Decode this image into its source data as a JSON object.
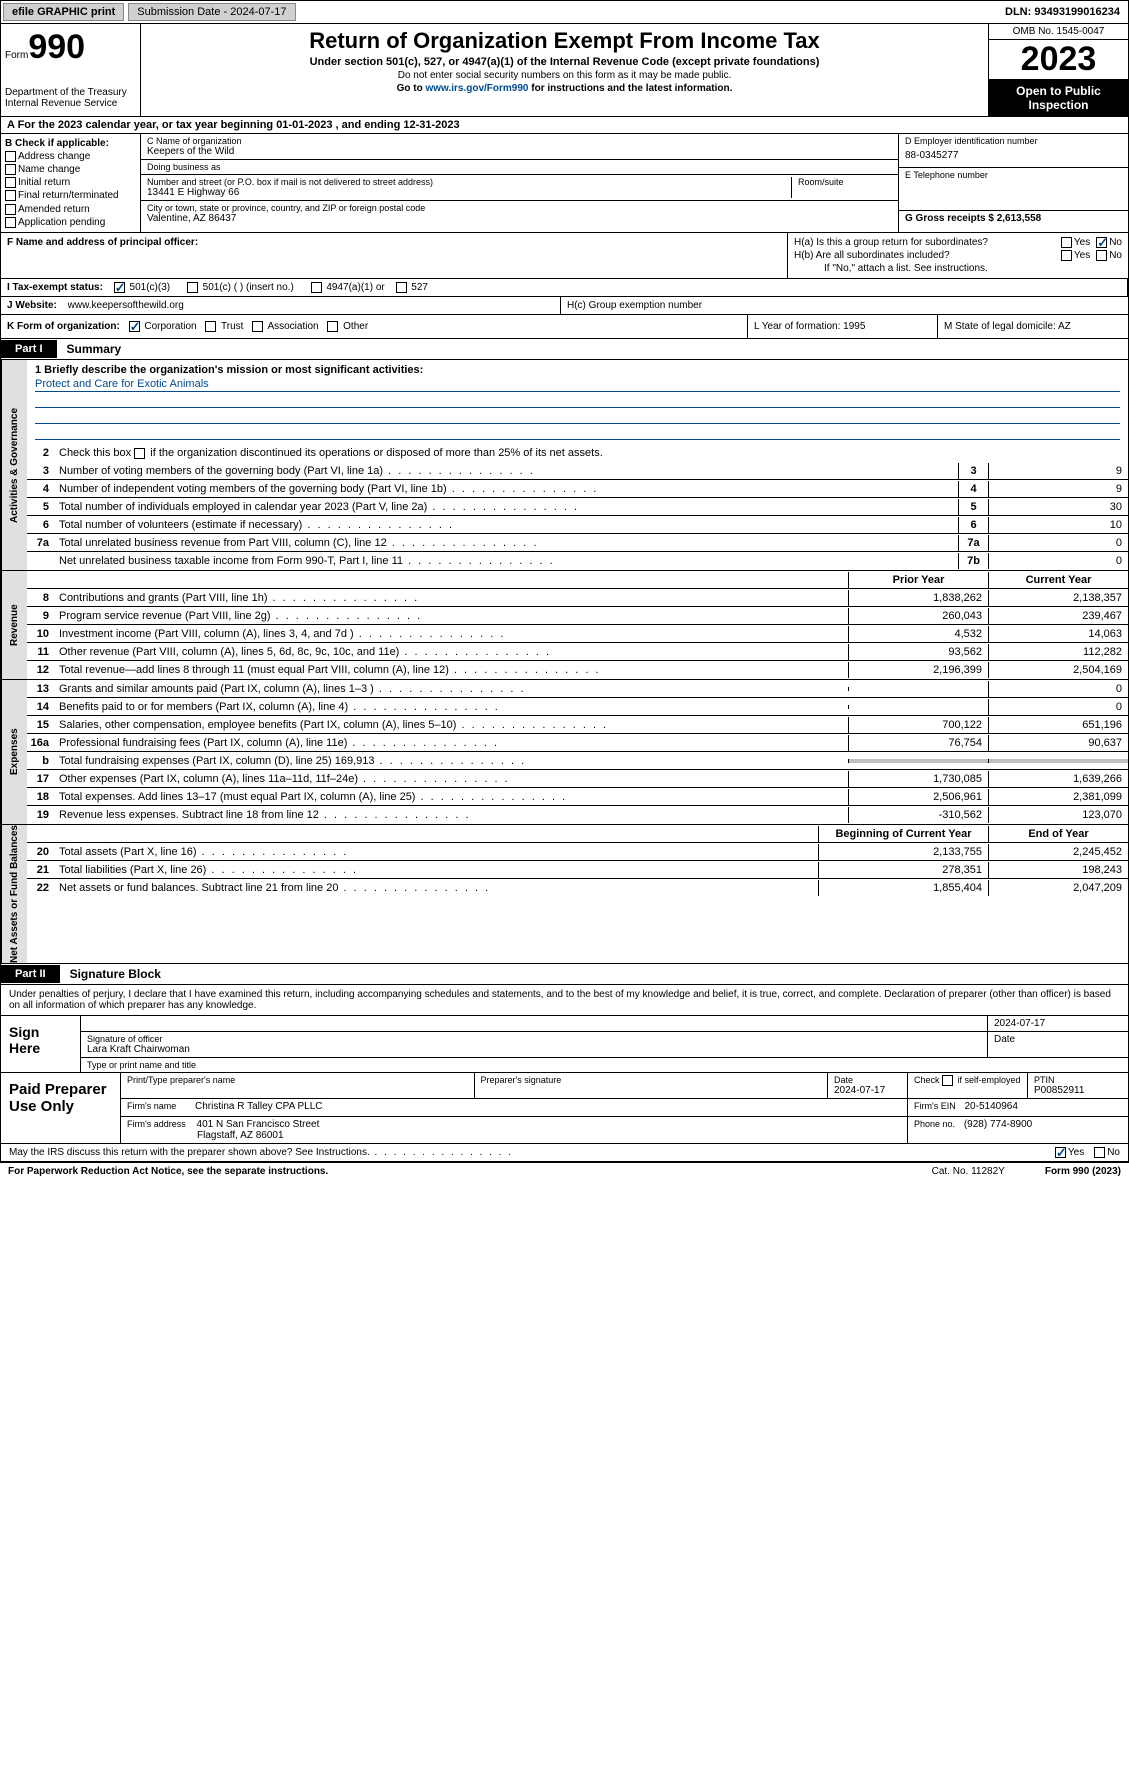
{
  "topbar": {
    "efile": "efile GRAPHIC print",
    "submission": "Submission Date - 2024-07-17",
    "dln": "DLN: 93493199016234"
  },
  "header": {
    "form_prefix": "Form",
    "form_number": "990",
    "dept": "Department of the Treasury",
    "irs": "Internal Revenue Service",
    "title": "Return of Organization Exempt From Income Tax",
    "sub1": "Under section 501(c), 527, or 4947(a)(1) of the Internal Revenue Code (except private foundations)",
    "sub2": "Do not enter social security numbers on this form as it may be made public.",
    "sub3_pre": "Go to ",
    "sub3_link": "www.irs.gov/Form990",
    "sub3_post": " for instructions and the latest information.",
    "omb": "OMB No. 1545-0047",
    "year": "2023",
    "inspection": "Open to Public Inspection"
  },
  "row_a": "A For the 2023 calendar year, or tax year beginning 01-01-2023   , and ending 12-31-2023",
  "section_b": {
    "label": "B Check if applicable:",
    "opts": [
      "Address change",
      "Name change",
      "Initial return",
      "Final return/terminated",
      "Amended return",
      "Application pending"
    ]
  },
  "section_c": {
    "name_label": "C Name of organization",
    "name": "Keepers of the Wild",
    "dba_label": "Doing business as",
    "dba": "",
    "street_label": "Number and street (or P.O. box if mail is not delivered to street address)",
    "street": "13441 E Highway 66",
    "room_label": "Room/suite",
    "city_label": "City or town, state or province, country, and ZIP or foreign postal code",
    "city": "Valentine, AZ  86437"
  },
  "section_d": {
    "ein_label": "D Employer identification number",
    "ein": "88-0345277",
    "phone_label": "E Telephone number",
    "phone": "",
    "gross_label": "G Gross receipts $ 2,613,558"
  },
  "section_f": "F  Name and address of principal officer:",
  "section_h": {
    "ha": "H(a)  Is this a group return for subordinates?",
    "ha_yes": "Yes",
    "ha_no": "No",
    "hb": "H(b)  Are all subordinates included?",
    "hb_yes": "Yes",
    "hb_no": "No",
    "hb_note": "If \"No,\" attach a list. See instructions.",
    "hc": "H(c)  Group exemption number"
  },
  "section_i": {
    "label": "I  Tax-exempt status:",
    "o1": "501(c)(3)",
    "o2": "501(c) (   ) (insert no.)",
    "o3": "4947(a)(1) or",
    "o4": "527"
  },
  "section_j": {
    "label": "J  Website:",
    "value": "www.keepersofthewild.org"
  },
  "section_k": {
    "label": "K Form of organization:",
    "o1": "Corporation",
    "o2": "Trust",
    "o3": "Association",
    "o4": "Other"
  },
  "section_l": "L Year of formation: 1995",
  "section_m": "M State of legal domicile: AZ",
  "parts": {
    "p1": "Part I",
    "p1_title": "Summary",
    "p2": "Part II",
    "p2_title": "Signature Block"
  },
  "vtabs": {
    "gov": "Activities & Governance",
    "rev": "Revenue",
    "exp": "Expenses",
    "net": "Net Assets or Fund Balances"
  },
  "summary": {
    "line1_label": "1  Briefly describe the organization's mission or most significant activities:",
    "mission": "Protect and Care for Exotic Animals",
    "line2": "Check this box       if the organization discontinued its operations or disposed of more than 25% of its net assets.",
    "lines_gov": [
      {
        "n": "3",
        "d": "Number of voting members of the governing body (Part VI, line 1a)",
        "b": "3",
        "v": "9"
      },
      {
        "n": "4",
        "d": "Number of independent voting members of the governing body (Part VI, line 1b)",
        "b": "4",
        "v": "9"
      },
      {
        "n": "5",
        "d": "Total number of individuals employed in calendar year 2023 (Part V, line 2a)",
        "b": "5",
        "v": "30"
      },
      {
        "n": "6",
        "d": "Total number of volunteers (estimate if necessary)",
        "b": "6",
        "v": "10"
      },
      {
        "n": "7a",
        "d": "Total unrelated business revenue from Part VIII, column (C), line 12",
        "b": "7a",
        "v": "0"
      },
      {
        "n": "",
        "d": "Net unrelated business taxable income from Form 990-T, Part I, line 11",
        "b": "7b",
        "v": "0"
      }
    ],
    "col_prior": "Prior Year",
    "col_current": "Current Year",
    "lines_rev": [
      {
        "n": "8",
        "d": "Contributions and grants (Part VIII, line 1h)",
        "p": "1,838,262",
        "c": "2,138,357"
      },
      {
        "n": "9",
        "d": "Program service revenue (Part VIII, line 2g)",
        "p": "260,043",
        "c": "239,467"
      },
      {
        "n": "10",
        "d": "Investment income (Part VIII, column (A), lines 3, 4, and 7d )",
        "p": "4,532",
        "c": "14,063"
      },
      {
        "n": "11",
        "d": "Other revenue (Part VIII, column (A), lines 5, 6d, 8c, 9c, 10c, and 11e)",
        "p": "93,562",
        "c": "112,282"
      },
      {
        "n": "12",
        "d": "Total revenue—add lines 8 through 11 (must equal Part VIII, column (A), line 12)",
        "p": "2,196,399",
        "c": "2,504,169"
      }
    ],
    "lines_exp": [
      {
        "n": "13",
        "d": "Grants and similar amounts paid (Part IX, column (A), lines 1–3 )",
        "p": "",
        "c": "0"
      },
      {
        "n": "14",
        "d": "Benefits paid to or for members (Part IX, column (A), line 4)",
        "p": "",
        "c": "0"
      },
      {
        "n": "15",
        "d": "Salaries, other compensation, employee benefits (Part IX, column (A), lines 5–10)",
        "p": "700,122",
        "c": "651,196"
      },
      {
        "n": "16a",
        "d": "Professional fundraising fees (Part IX, column (A), line 11e)",
        "p": "76,754",
        "c": "90,637"
      },
      {
        "n": "b",
        "d": "Total fundraising expenses (Part IX, column (D), line 25) 169,913",
        "p": "shade",
        "c": "shade"
      },
      {
        "n": "17",
        "d": "Other expenses (Part IX, column (A), lines 11a–11d, 11f–24e)",
        "p": "1,730,085",
        "c": "1,639,266"
      },
      {
        "n": "18",
        "d": "Total expenses. Add lines 13–17 (must equal Part IX, column (A), line 25)",
        "p": "2,506,961",
        "c": "2,381,099"
      },
      {
        "n": "19",
        "d": "Revenue less expenses. Subtract line 18 from line 12",
        "p": "-310,562",
        "c": "123,070"
      }
    ],
    "col_begin": "Beginning of Current Year",
    "col_end": "End of Year",
    "lines_net": [
      {
        "n": "20",
        "d": "Total assets (Part X, line 16)",
        "p": "2,133,755",
        "c": "2,245,452"
      },
      {
        "n": "21",
        "d": "Total liabilities (Part X, line 26)",
        "p": "278,351",
        "c": "198,243"
      },
      {
        "n": "22",
        "d": "Net assets or fund balances. Subtract line 21 from line 20",
        "p": "1,855,404",
        "c": "2,047,209"
      }
    ]
  },
  "sig": {
    "text": "Under penalties of perjury, I declare that I have examined this return, including accompanying schedules and statements, and to the best of my knowledge and belief, it is true, correct, and complete. Declaration of preparer (other than officer) is based on all information of which preparer has any knowledge.",
    "sign_here": "Sign Here",
    "sig_officer": "Signature of officer",
    "date": "Date",
    "date_val": "2024-07-17",
    "officer_name": "Lara Kraft  Chairwoman",
    "type_name": "Type or print name and title",
    "paid": "Paid Preparer Use Only",
    "prep_name_lbl": "Print/Type preparer's name",
    "prep_sig_lbl": "Preparer's signature",
    "prep_date_lbl": "Date",
    "prep_date": "2024-07-17",
    "self_emp": "Check        if self-employed",
    "ptin_lbl": "PTIN",
    "ptin": "P00852911",
    "firm_name_lbl": "Firm's name",
    "firm_name": "Christina R Talley CPA PLLC",
    "firm_ein_lbl": "Firm's EIN",
    "firm_ein": "20-5140964",
    "firm_addr_lbl": "Firm's address",
    "firm_addr1": "401 N San Francisco Street",
    "firm_addr2": "Flagstaff, AZ  86001",
    "phone_lbl": "Phone no.",
    "phone": "(928) 774-8900"
  },
  "discuss": {
    "q": "May the IRS discuss this return with the preparer shown above? See Instructions.",
    "yes": "Yes",
    "no": "No"
  },
  "footer": {
    "l": "For Paperwork Reduction Act Notice, see the separate instructions.",
    "m": "Cat. No. 11282Y",
    "r": "Form 990 (2023)"
  },
  "colors": {
    "link": "#004b8d",
    "black": "#000000",
    "shade": "#c0c0c0",
    "vtab_bg": "#e0e0e0"
  }
}
